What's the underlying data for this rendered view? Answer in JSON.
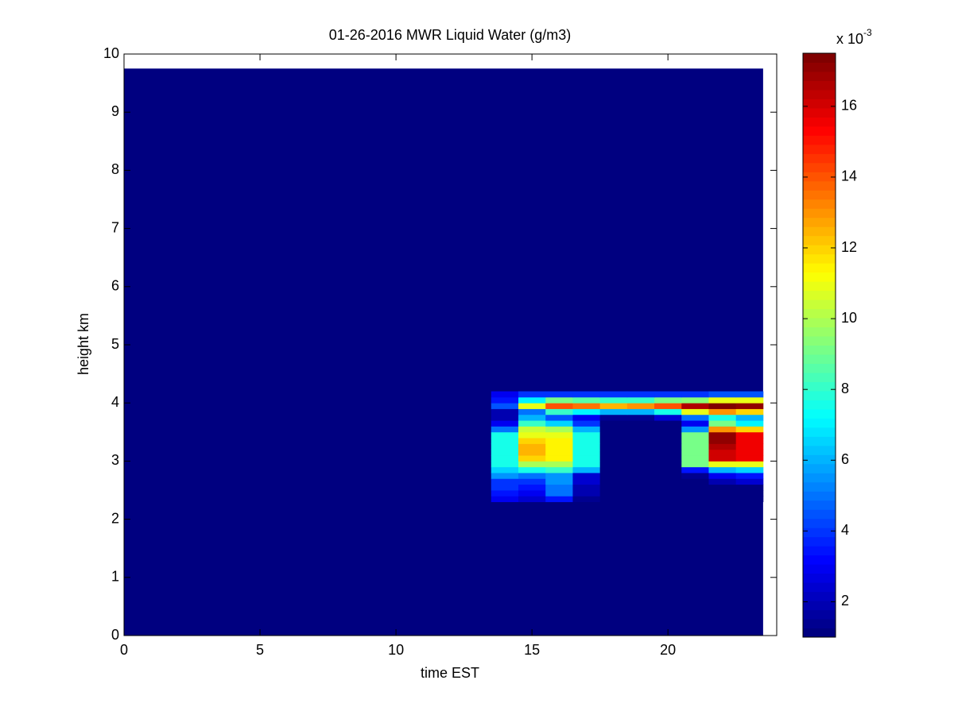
{
  "chart_data": {
    "type": "heatmap",
    "title": "01-26-2016 MWR Liquid Water (g/m3)",
    "x_label": "time EST",
    "y_label": "height km",
    "xlim": [
      0,
      24
    ],
    "ylim": [
      0,
      10
    ],
    "xticks": [
      0,
      5,
      10,
      15,
      20
    ],
    "yticks": [
      0,
      1,
      2,
      3,
      4,
      5,
      6,
      7,
      8,
      9,
      10
    ],
    "base_value": 1,
    "data_extent": {
      "x": [
        0,
        23.5
      ],
      "y": [
        0,
        9.75
      ]
    },
    "x_edges": [
      13.5,
      14.5,
      15.5,
      16.5,
      17.5,
      18.5,
      19.5,
      20.5,
      21.5,
      22.5,
      23.5
    ],
    "y_edges": [
      2.3,
      2.4,
      2.5,
      2.6,
      2.7,
      2.8,
      2.9,
      3.0,
      3.1,
      3.2,
      3.3,
      3.4,
      3.5,
      3.6,
      3.7,
      3.8,
      3.9,
      4.0,
      4.1,
      4.2
    ],
    "values": [
      [
        3,
        2.5,
        3.5,
        1.5,
        1,
        1,
        1,
        1,
        1,
        1
      ],
      [
        3.5,
        3,
        5,
        2,
        1,
        1,
        1,
        1,
        1,
        1
      ],
      [
        4,
        3.5,
        5,
        2,
        1,
        1,
        1,
        1,
        1,
        1
      ],
      [
        4,
        4,
        5.5,
        2.5,
        1,
        1,
        1,
        1,
        2,
        2.5
      ],
      [
        5.5,
        5,
        5.5,
        2.5,
        1,
        1,
        1,
        1.5,
        3,
        3.5
      ],
      [
        6.5,
        7.5,
        8,
        6,
        1,
        1,
        1,
        3.5,
        6,
        6.5
      ],
      [
        7.5,
        10,
        10,
        7.5,
        1,
        1,
        1,
        9,
        11,
        11
      ],
      [
        7.5,
        12,
        11.5,
        7.5,
        1,
        1,
        1,
        9,
        16,
        15.5
      ],
      [
        7.5,
        12.5,
        11.5,
        7.5,
        1,
        1,
        1,
        9,
        16,
        15.5
      ],
      [
        7.5,
        12.5,
        11.5,
        7.5,
        1,
        1,
        1,
        9,
        16.5,
        15.5
      ],
      [
        7.5,
        12,
        11.5,
        7.5,
        1,
        1,
        1,
        9,
        17,
        15.5
      ],
      [
        7.5,
        11,
        11,
        7.5,
        1,
        1,
        1,
        9,
        17,
        15.5
      ],
      [
        5,
        10.5,
        10,
        6,
        1,
        1,
        1,
        5.5,
        13,
        12
      ],
      [
        3,
        8,
        6.5,
        4,
        1,
        1,
        1,
        3,
        9,
        7
      ],
      [
        2,
        6,
        4.5,
        3,
        1.5,
        1.5,
        2.5,
        5,
        7.5,
        6
      ],
      [
        2,
        5,
        8,
        7,
        6,
        6,
        7.5,
        11,
        13,
        12
      ],
      [
        4.5,
        11,
        14,
        13.5,
        12.5,
        13,
        14,
        16.5,
        17.4,
        17
      ],
      [
        3.5,
        7,
        9,
        8.5,
        8,
        8,
        9,
        9.5,
        11,
        11
      ],
      [
        3,
        4,
        4,
        4,
        4,
        4,
        4,
        4,
        4.5,
        4.5
      ]
    ],
    "colormap": "jet",
    "clim": [
      1,
      17.5
    ],
    "colorbar_ticks": [
      2,
      4,
      6,
      8,
      10,
      12,
      14,
      16
    ],
    "colorbar_scale": {
      "prefix": "x 10",
      "exponent": "-3"
    }
  }
}
